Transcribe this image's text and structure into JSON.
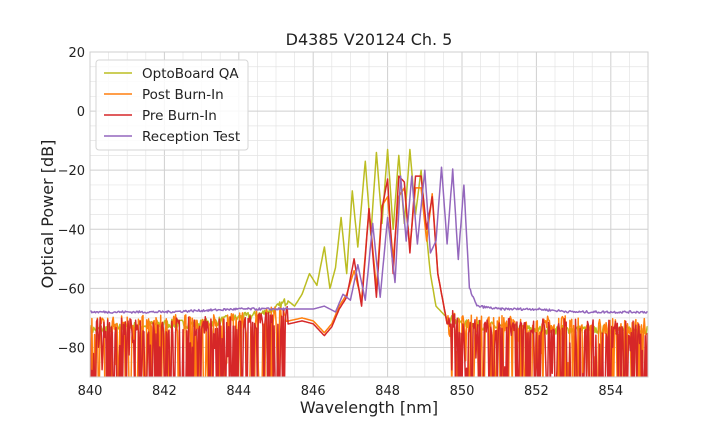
{
  "chart_data": {
    "type": "line",
    "title": "D4385 V20124 Ch. 5",
    "xlabel": "Wavelength [nm]",
    "ylabel": "Optical Power [dB]",
    "xlim": [
      840,
      855
    ],
    "ylim": [
      -90,
      20
    ],
    "xticks": [
      840,
      842,
      844,
      846,
      848,
      850,
      852,
      854
    ],
    "yticks": [
      -80,
      -60,
      -40,
      -20,
      0,
      20
    ],
    "xtick_labels": [
      "840",
      "842",
      "844",
      "846",
      "848",
      "850",
      "852",
      "854"
    ],
    "ytick_labels": [
      "−80",
      "−60",
      "−40",
      "−20",
      "0",
      "20"
    ],
    "grid": true,
    "legend_position": "top-left",
    "noise_floor_clipped_at": -90,
    "series": [
      {
        "name": "OptoBoard QA",
        "color": "#bcbd22",
        "x": [
          840,
          841,
          842,
          843,
          844,
          844.5,
          845,
          845.3,
          845.5,
          845.7,
          845.9,
          846.1,
          846.3,
          846.45,
          846.6,
          846.75,
          846.9,
          847.05,
          847.2,
          847.4,
          847.55,
          847.7,
          847.85,
          848.0,
          848.15,
          848.3,
          848.45,
          848.6,
          848.75,
          848.9,
          849.0,
          849.15,
          849.3,
          849.6,
          850,
          852,
          855
        ],
        "y": [
          -74,
          -73,
          -72,
          -72,
          -70,
          -69,
          -67,
          -64,
          -66,
          -62,
          -55,
          -59,
          -46,
          -60,
          -53,
          -36,
          -55,
          -27,
          -46,
          -17,
          -42,
          -14,
          -38,
          -13,
          -40,
          -15,
          -38,
          -13,
          -35,
          -20,
          -36,
          -55,
          -66,
          -70,
          -72,
          -74,
          -74
        ]
      },
      {
        "name": "Post Burn-In",
        "color": "#ff7f0e",
        "x": [
          840,
          842,
          844,
          845,
          845.7,
          846.0,
          846.3,
          846.5,
          846.7,
          846.9,
          847.1,
          847.3,
          847.5,
          847.7,
          847.85,
          848.0,
          848.15,
          848.3,
          848.45,
          848.6,
          848.75,
          848.9,
          849.05,
          849.2,
          849.35,
          849.6,
          850,
          852,
          855
        ],
        "y": [
          -75,
          -75,
          -74,
          -72,
          -70,
          -71,
          -75,
          -72,
          -66,
          -62,
          -54,
          -64,
          -33,
          -60,
          -32,
          -29,
          -50,
          -29,
          -26,
          -46,
          -26,
          -26,
          -44,
          -28,
          -55,
          -72,
          -75,
          -75,
          -76
        ]
      },
      {
        "name": "Pre Burn-In",
        "color": "#d62728",
        "x": [
          840,
          842,
          844,
          845,
          845.7,
          846.0,
          846.3,
          846.5,
          846.7,
          846.9,
          847.1,
          847.3,
          847.5,
          847.7,
          847.85,
          848.0,
          848.15,
          848.3,
          848.45,
          848.6,
          848.75,
          848.9,
          849.05,
          849.2,
          849.35,
          849.6,
          850,
          852,
          855
        ],
        "y": [
          -76,
          -76,
          -75,
          -73,
          -71,
          -72,
          -76,
          -73,
          -67,
          -63,
          -50,
          -66,
          -33,
          -63,
          -33,
          -23,
          -55,
          -22,
          -24,
          -48,
          -22,
          -22,
          -40,
          -29,
          -55,
          -72,
          -76,
          -76,
          -77
        ]
      },
      {
        "name": "Reception Test",
        "color": "#9467bd",
        "x": [
          840,
          842,
          844,
          845,
          845.5,
          846,
          846.3,
          846.6,
          846.8,
          847.0,
          847.2,
          847.4,
          847.6,
          847.8,
          848.0,
          848.2,
          848.35,
          848.5,
          848.65,
          848.8,
          849.0,
          849.15,
          849.3,
          849.45,
          849.6,
          849.75,
          849.9,
          850.05,
          850.2,
          850.4,
          851,
          852,
          853,
          855
        ],
        "y": [
          -68,
          -68,
          -67,
          -67,
          -67,
          -67,
          -66,
          -68,
          -62,
          -64,
          -52,
          -64,
          -38,
          -63,
          -36,
          -58,
          -22,
          -44,
          -22,
          -45,
          -20,
          -48,
          -44,
          -19,
          -45,
          -20,
          -50,
          -25,
          -60,
          -66,
          -67,
          -67,
          -68,
          -68
        ]
      }
    ]
  }
}
